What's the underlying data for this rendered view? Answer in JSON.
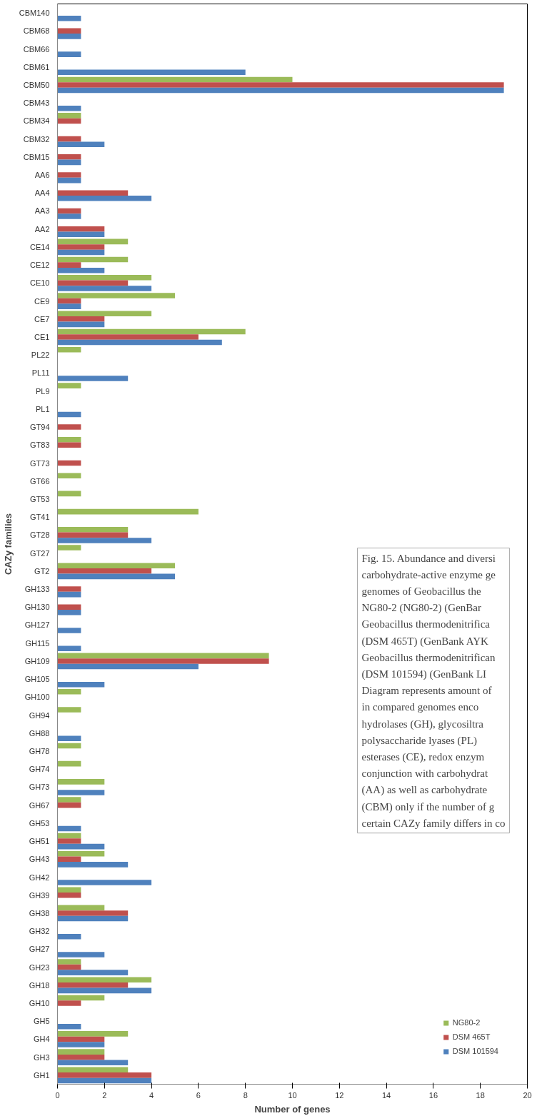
{
  "chart_data": {
    "type": "bar",
    "orientation": "horizontal",
    "xlabel": "Number of genes",
    "ylabel": "CAZy families",
    "categories": [
      "CBM140",
      "CBM68",
      "CBM66",
      "CBM61",
      "CBM50",
      "CBM43",
      "CBM34",
      "CBM32",
      "CBM15",
      "AA6",
      "AA4",
      "AA3",
      "AA2",
      "CE14",
      "CE12",
      "CE10",
      "CE9",
      "CE7",
      "CE1",
      "PL22",
      "PL11",
      "PL9",
      "PL1",
      "GT94",
      "GT83",
      "GT73",
      "GT66",
      "GT53",
      "GT41",
      "GT28",
      "GT27",
      "GT2",
      "GH133",
      "GH130",
      "GH127",
      "GH115",
      "GH109",
      "GH105",
      "GH100",
      "GH94",
      "GH88",
      "GH78",
      "GH74",
      "GH73",
      "GH67",
      "GH53",
      "GH51",
      "GH43",
      "GH42",
      "GH39",
      "GH38",
      "GH32",
      "GH27",
      "GH23",
      "GH18",
      "GH10",
      "GH5",
      "GH4",
      "GH3",
      "GH1"
    ],
    "series": [
      {
        "name": "NG80-2",
        "color": "#9bbb59",
        "values": [
          0,
          0,
          0,
          0,
          10,
          0,
          1,
          0,
          0,
          0,
          0,
          0,
          0,
          3,
          3,
          4,
          5,
          4,
          8,
          1,
          0,
          1,
          0,
          0,
          1,
          0,
          1,
          1,
          6,
          3,
          1,
          5,
          0,
          0,
          0,
          0,
          9,
          0,
          1,
          1,
          0,
          1,
          1,
          2,
          1,
          0,
          1,
          2,
          0,
          1,
          2,
          0,
          0,
          1,
          4,
          2,
          0,
          3,
          2,
          3
        ]
      },
      {
        "name": "DSM 465T",
        "color": "#c0504d",
        "values": [
          0,
          1,
          0,
          0,
          19,
          0,
          1,
          1,
          1,
          1,
          3,
          1,
          2,
          2,
          1,
          3,
          1,
          2,
          6,
          0,
          0,
          0,
          0,
          1,
          1,
          1,
          0,
          0,
          0,
          3,
          0,
          4,
          1,
          1,
          0,
          0,
          9,
          0,
          0,
          0,
          0,
          0,
          0,
          0,
          1,
          0,
          1,
          1,
          0,
          1,
          3,
          0,
          0,
          1,
          3,
          1,
          0,
          2,
          2,
          4
        ]
      },
      {
        "name": "DSM 101594",
        "color": "#4f81bd",
        "values": [
          1,
          1,
          1,
          8,
          19,
          1,
          0,
          2,
          1,
          1,
          4,
          1,
          2,
          2,
          2,
          4,
          1,
          2,
          7,
          0,
          3,
          0,
          1,
          0,
          0,
          0,
          0,
          0,
          0,
          4,
          0,
          5,
          1,
          1,
          1,
          1,
          6,
          2,
          0,
          0,
          1,
          0,
          0,
          2,
          0,
          1,
          2,
          3,
          4,
          0,
          3,
          1,
          2,
          3,
          4,
          0,
          1,
          2,
          3,
          4
        ]
      }
    ],
    "xlim": [
      0,
      20
    ],
    "xticks": [
      0,
      2,
      4,
      6,
      8,
      10,
      12,
      14,
      16,
      18,
      20
    ],
    "grid": false,
    "legend": "bottom right",
    "annotations": [
      "Fig. 15. Abundance and diversi\ncarbohydrate-active enzyme ge\ngenomes of Geobacillus the\nNG80-2 (NG80-2) (GenBar\nGeobacillus thermodenitrifica\n(DSM 465T) (GenBank AYK\nGeobacillus thermodenitrifican\n(DSM 101594) (GenBank LI\nDiagram represents amount of\nin compared genomes enco\nhydrolases (GH), glycosiltra\npolysaccharide lyases (PL)\nesterases (CE), redox enzym\nconjunction with carbohydrat\n(AA) as well as carbohydrate\n(CBM) only if the number of g\ncertain CAZy family differs in co"
    ]
  }
}
